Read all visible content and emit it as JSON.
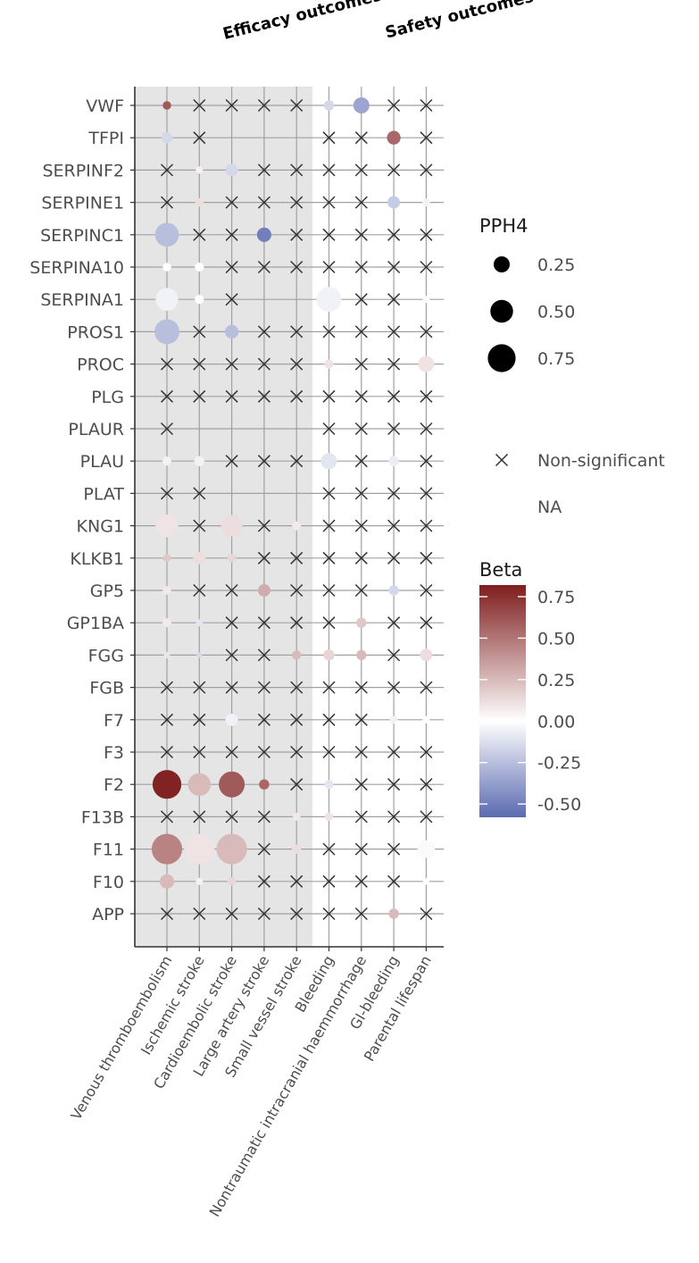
{
  "chart_data": {
    "type": "bubble-matrix",
    "group_labels": [
      "Efficacy outcomes",
      "Safety outcomes"
    ],
    "x_categories": [
      "Venous thromboembolism",
      "Ischemic stroke",
      "Cardioembolic stroke",
      "Large artery stroke",
      "Small vessel stroke",
      "Bleeding",
      "Nontraumatic intracranial haemmorrhage",
      "GI-bleeding",
      "Parental lifespan"
    ],
    "efficacy_columns": 5,
    "y_categories": [
      "VWF",
      "TFPI",
      "SERPINF2",
      "SERPINE1",
      "SERPINC1",
      "SERPINA10",
      "SERPINA1",
      "PROS1",
      "PROC",
      "PLG",
      "PLAUR",
      "PLAU",
      "PLAT",
      "KNG1",
      "KLKB1",
      "GP5",
      "GP1BA",
      "FGG",
      "FGB",
      "F7",
      "F3",
      "F2",
      "F13B",
      "F11",
      "F10",
      "APP"
    ],
    "cell_codes": {
      "X": "non-significant",
      "N": "NA (blank)",
      "[pph4, beta]": "significant colocalised result"
    },
    "cells": {
      "VWF": [
        [
          0.07,
          0.6
        ],
        "X",
        "X",
        "X",
        "X",
        [
          0.1,
          -0.15
        ],
        [
          0.25,
          -0.35
        ],
        "X",
        "X"
      ],
      "TFPI": [
        [
          0.12,
          -0.15
        ],
        "X",
        "N",
        "N",
        "N",
        "X",
        "X",
        [
          0.18,
          0.55
        ],
        "X"
      ],
      "SERPINF2": [
        "X",
        [
          0.05,
          0.05
        ],
        [
          0.15,
          -0.15
        ],
        "X",
        "X",
        "X",
        "X",
        "X",
        "X"
      ],
      "SERPINE1": [
        "X",
        [
          0.07,
          0.12
        ],
        "X",
        "X",
        "X",
        "X",
        "X",
        [
          0.15,
          -0.2
        ],
        [
          0.06,
          -0.05
        ]
      ],
      "SERPINC1": [
        [
          0.55,
          -0.25
        ],
        "X",
        "X",
        [
          0.2,
          -0.5
        ],
        "X",
        "X",
        "X",
        "X",
        "X"
      ],
      "SERPINA10": [
        [
          0.07,
          0.0
        ],
        [
          0.08,
          0.0
        ],
        "X",
        "X",
        "X",
        "X",
        "X",
        "X",
        "X"
      ],
      "SERPINA1": [
        [
          0.5,
          -0.05
        ],
        [
          0.08,
          0.0
        ],
        "X",
        "N",
        "N",
        [
          0.6,
          -0.05
        ],
        "X",
        "X",
        [
          0.05,
          0.02
        ]
      ],
      "PROS1": [
        [
          0.6,
          -0.25
        ],
        "X",
        [
          0.18,
          -0.25
        ],
        "X",
        "X",
        "X",
        "X",
        "X",
        "X"
      ],
      "PROC": [
        "X",
        "X",
        "X",
        "X",
        "X",
        [
          0.08,
          0.1
        ],
        "X",
        "X",
        [
          0.25,
          0.1
        ]
      ],
      "PLG": [
        "X",
        "X",
        "X",
        "X",
        "X",
        "X",
        "X",
        "X",
        "X"
      ],
      "PLAUR": [
        "X",
        "N",
        "N",
        "N",
        "N",
        "X",
        "X",
        "X",
        "X"
      ],
      "PLAU": [
        [
          0.08,
          0.05
        ],
        [
          0.1,
          -0.05
        ],
        "X",
        "X",
        "X",
        [
          0.25,
          -0.1
        ],
        "X",
        [
          0.1,
          -0.07
        ],
        "X"
      ],
      "PLAT": [
        "X",
        "X",
        "N",
        "N",
        "N",
        "X",
        "X",
        "X",
        "X"
      ],
      "KNG1": [
        [
          0.5,
          0.1
        ],
        "X",
        [
          0.45,
          0.12
        ],
        "X",
        [
          0.08,
          0.08
        ],
        "X",
        "X",
        "X",
        "X"
      ],
      "KLKB1": [
        [
          0.06,
          0.2
        ],
        [
          0.15,
          0.12
        ],
        [
          0.07,
          0.15
        ],
        "X",
        "X",
        "X",
        "X",
        "X",
        "X"
      ],
      "GP5": [
        [
          0.07,
          0.08
        ],
        "X",
        "X",
        [
          0.15,
          0.3
        ],
        "X",
        "X",
        "X",
        [
          0.1,
          -0.15
        ],
        "X"
      ],
      "GP1BA": [
        [
          0.08,
          0.08
        ],
        [
          0.05,
          -0.1
        ],
        "X",
        "X",
        "X",
        "X",
        [
          0.1,
          0.2
        ],
        "X",
        "X"
      ],
      "FGG": [
        [
          0.04,
          -0.1
        ],
        [
          0.03,
          -0.15
        ],
        "X",
        "X",
        [
          0.08,
          0.25
        ],
        [
          0.12,
          0.15
        ],
        [
          0.1,
          0.25
        ],
        "X",
        [
          0.15,
          0.12
        ]
      ],
      "FGB": [
        "X",
        "X",
        "X",
        "X",
        "X",
        "X",
        "X",
        "X",
        "X"
      ],
      "F7": [
        "X",
        "X",
        [
          0.15,
          -0.05
        ],
        "X",
        "X",
        "X",
        "X",
        [
          0.06,
          -0.05
        ],
        [
          0.05,
          0.0
        ]
      ],
      "F3": [
        "X",
        "X",
        "X",
        "X",
        "X",
        "X",
        "X",
        "X",
        "X"
      ],
      "F2": [
        [
          0.8,
          0.8
        ],
        [
          0.5,
          0.25
        ],
        [
          0.65,
          0.6
        ],
        [
          0.1,
          0.55
        ],
        "X",
        [
          0.08,
          -0.1
        ],
        "X",
        "X",
        "X"
      ],
      "F13B": [
        "X",
        "X",
        "X",
        "X",
        [
          0.06,
          0.08
        ],
        [
          0.07,
          0.1
        ],
        "X",
        "X",
        "X"
      ],
      "F11": [
        [
          0.9,
          0.45
        ],
        [
          0.9,
          0.1
        ],
        [
          0.9,
          0.25
        ],
        "X",
        [
          0.08,
          0.12
        ],
        "X",
        "X",
        "X",
        [
          0.3,
          0.02
        ]
      ],
      "F10": [
        [
          0.2,
          0.25
        ],
        [
          0.05,
          0.05
        ],
        [
          0.07,
          0.15
        ],
        "X",
        "X",
        "X",
        "X",
        "X",
        [
          0.04,
          0.0
        ]
      ],
      "APP": [
        "X",
        "X",
        "X",
        "X",
        "X",
        "X",
        "X",
        [
          0.1,
          0.25
        ],
        "X"
      ]
    },
    "size_legend": {
      "title": "PPH4",
      "labels": [
        "0.25",
        "0.50",
        "0.75"
      ],
      "values": [
        0.25,
        0.5,
        0.75
      ]
    },
    "shape_legend": [
      {
        "symbol": "×",
        "label": "Non-significant"
      },
      {
        "symbol": "",
        "label": "NA"
      }
    ],
    "color_legend": {
      "title": "Beta",
      "labels": [
        "0.75",
        "0.50",
        "0.25",
        "0.00",
        "-0.25",
        "-0.50"
      ],
      "values": [
        0.75,
        0.5,
        0.25,
        0.0,
        -0.25,
        -0.5
      ],
      "range": [
        -0.58,
        0.82
      ],
      "colors": {
        "low": "#5a6ab0",
        "mid": "#ffffff",
        "high": "#7f1d1d"
      }
    },
    "panel_background": "#e5e5e5",
    "gridline_color": "#a0a0a0"
  }
}
